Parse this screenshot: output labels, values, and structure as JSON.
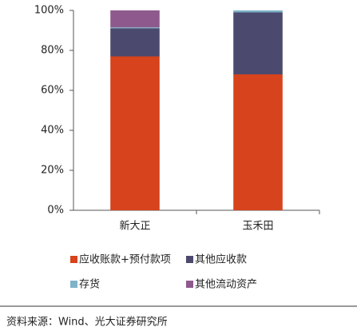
{
  "chart_data": {
    "type": "stacked_bar",
    "categories": [
      "新大正",
      "玉禾田"
    ],
    "series": [
      {
        "name": "应收账款+预付款项",
        "color": "#d6431c",
        "values": [
          77,
          68
        ]
      },
      {
        "name": "其他应收款",
        "color": "#4b4a6e",
        "values": [
          14,
          31
        ]
      },
      {
        "name": "存货",
        "color": "#7fb3c8",
        "values": [
          0.5,
          1
        ]
      },
      {
        "name": "其他流动资产",
        "color": "#8e5a8e",
        "values": [
          8.5,
          0
        ]
      }
    ],
    "ylim": [
      0,
      100
    ],
    "yticks": [
      {
        "value": 0,
        "label": "0%"
      },
      {
        "value": 20,
        "label": "20%"
      },
      {
        "value": 40,
        "label": "40%"
      },
      {
        "value": 60,
        "label": "60%"
      },
      {
        "value": 80,
        "label": "80%"
      },
      {
        "value": 100,
        "label": "100%"
      }
    ],
    "grid": false,
    "source": "资料来源：Wind、光大证券研究所"
  }
}
